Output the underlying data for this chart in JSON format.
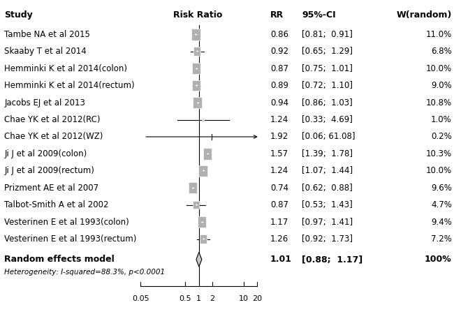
{
  "studies": [
    {
      "name": "Tambe NA et al 2015",
      "rr": 0.86,
      "ci_lo": 0.81,
      "ci_hi": 0.91,
      "weight": 11.0,
      "w_str": "11.0%",
      "rr_str": "0.86",
      "ci_str": "[0.81;  0.91]"
    },
    {
      "name": "Skaaby T et al 2014",
      "rr": 0.92,
      "ci_lo": 0.65,
      "ci_hi": 1.29,
      "weight": 6.8,
      "w_str": "6.8%",
      "rr_str": "0.92",
      "ci_str": "[0.65;  1.29]"
    },
    {
      "name": "Hemminki K et al 2014(colon)",
      "rr": 0.87,
      "ci_lo": 0.75,
      "ci_hi": 1.01,
      "weight": 10.0,
      "w_str": "10.0%",
      "rr_str": "0.87",
      "ci_str": "[0.75;  1.01]"
    },
    {
      "name": "Hemminki K et al 2014(rectum)",
      "rr": 0.89,
      "ci_lo": 0.72,
      "ci_hi": 1.1,
      "weight": 9.0,
      "w_str": "9.0%",
      "rr_str": "0.89",
      "ci_str": "[0.72;  1.10]"
    },
    {
      "name": "Jacobs EJ et al 2013",
      "rr": 0.94,
      "ci_lo": 0.86,
      "ci_hi": 1.03,
      "weight": 10.8,
      "w_str": "10.8%",
      "rr_str": "0.94",
      "ci_str": "[0.86;  1.03]"
    },
    {
      "name": "Chae YK et al 2012(RC)",
      "rr": 1.24,
      "ci_lo": 0.33,
      "ci_hi": 4.69,
      "weight": 1.0,
      "w_str": "1.0%",
      "rr_str": "1.24",
      "ci_str": "[0.33;  4.69]"
    },
    {
      "name": "Chae YK et al 2012(WZ)",
      "rr": 1.92,
      "ci_lo": 0.06,
      "ci_hi": 61.08,
      "weight": 0.2,
      "w_str": "0.2%",
      "rr_str": "1.92",
      "ci_str": "[0.06; 61.08]",
      "arrow": true
    },
    {
      "name": "Ji J et al 2009(colon)",
      "rr": 1.57,
      "ci_lo": 1.39,
      "ci_hi": 1.78,
      "weight": 10.3,
      "w_str": "10.3%",
      "rr_str": "1.57",
      "ci_str": "[1.39;  1.78]"
    },
    {
      "name": "Ji J et al 2009(rectum)",
      "rr": 1.24,
      "ci_lo": 1.07,
      "ci_hi": 1.44,
      "weight": 10.0,
      "w_str": "10.0%",
      "rr_str": "1.24",
      "ci_str": "[1.07;  1.44]"
    },
    {
      "name": "Prizment AE et al 2007",
      "rr": 0.74,
      "ci_lo": 0.62,
      "ci_hi": 0.88,
      "weight": 9.6,
      "w_str": "9.6%",
      "rr_str": "0.74",
      "ci_str": "[0.62;  0.88]"
    },
    {
      "name": "Talbot-Smith A et al 2002",
      "rr": 0.87,
      "ci_lo": 0.53,
      "ci_hi": 1.43,
      "weight": 4.7,
      "w_str": "4.7%",
      "rr_str": "0.87",
      "ci_str": "[0.53;  1.43]"
    },
    {
      "name": "Vesterinen E et al 1993(colon)",
      "rr": 1.17,
      "ci_lo": 0.97,
      "ci_hi": 1.41,
      "weight": 9.4,
      "w_str": "9.4%",
      "rr_str": "1.17",
      "ci_str": "[0.97;  1.41]"
    },
    {
      "name": "Vesterinen E et al 1993(rectum)",
      "rr": 1.26,
      "ci_lo": 0.92,
      "ci_hi": 1.73,
      "weight": 7.2,
      "w_str": "7.2%",
      "rr_str": "1.26",
      "ci_str": "[0.92;  1.73]"
    }
  ],
  "summary": {
    "rr": 1.01,
    "ci_lo": 0.88,
    "ci_hi": 1.17,
    "rr_str": "1.01",
    "ci_str": "[0.88;  1.17]",
    "w_str": "100%",
    "label": "Random effects model"
  },
  "heterogeneity": "Heterogeneity: I-squared=88.3%, p<0.0001",
  "x_ticks": [
    0.05,
    0.5,
    1,
    2,
    10,
    20
  ],
  "x_tick_labels": [
    "0.05",
    "0.5",
    "1",
    "2",
    "10",
    "20"
  ],
  "box_color": "#b0b0b0",
  "diamond_color": "#c8c8c8",
  "ref_line_color": "#000000",
  "ci_line_color": "#000000",
  "font_size_study": 8.5,
  "font_size_header": 9.0,
  "font_size_tick": 8.0
}
